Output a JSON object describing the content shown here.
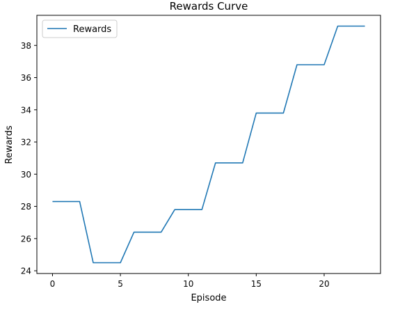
{
  "chart_data": {
    "type": "line",
    "title": "Rewards Curve",
    "xlabel": "Episode",
    "ylabel": "Rewards",
    "x": [
      0,
      1,
      2,
      3,
      4,
      5,
      6,
      7,
      8,
      9,
      10,
      11,
      12,
      13,
      14,
      15,
      16,
      17,
      18,
      19,
      20,
      21,
      22,
      23
    ],
    "series": [
      {
        "name": "Rewards",
        "values": [
          28.3,
          28.3,
          28.3,
          24.5,
          24.5,
          24.5,
          26.4,
          26.4,
          26.4,
          27.8,
          27.8,
          27.8,
          30.7,
          30.7,
          30.7,
          33.8,
          33.8,
          33.8,
          36.8,
          36.8,
          36.8,
          39.2,
          39.2,
          39.2
        ],
        "color": "#1f77b4"
      }
    ],
    "xlim": [
      -1.15,
      24.15
    ],
    "ylim": [
      23.83,
      39.87
    ],
    "xticks": [
      0,
      5,
      10,
      15,
      20
    ],
    "yticks": [
      24,
      26,
      28,
      30,
      32,
      34,
      36,
      38
    ],
    "legend_position": "top-left",
    "grid": false
  }
}
